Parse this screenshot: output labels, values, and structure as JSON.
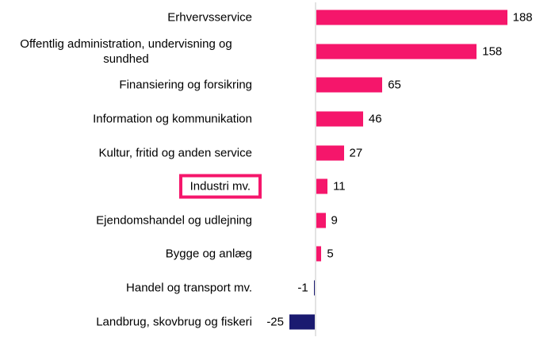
{
  "chart_data": {
    "type": "bar",
    "orientation": "horizontal",
    "title": "",
    "xlabel": "",
    "ylabel": "",
    "categories": [
      "Erhvervsservice",
      "Offentlig administration, undervisning og sundhed",
      "Finansiering og forsikring",
      "Information og kommunikation",
      "Kultur, fritid og anden service",
      "Industri mv.",
      "Ejendomshandel og udlejning",
      "Bygge og anlæg",
      "Handel og transport mv.",
      "Landbrug, skovbrug og fiskeri"
    ],
    "values": [
      188,
      158,
      65,
      46,
      27,
      11,
      9,
      5,
      -1,
      -25
    ],
    "value_labels": [
      "188",
      "158",
      "65",
      "46",
      "27",
      "11",
      "9",
      "5",
      "-1",
      "-25"
    ],
    "highlighted_category": "Industri mv.",
    "legend": null,
    "grid": false,
    "axis": {
      "baseline_at": 0,
      "approx_value_range": [
        -25,
        188
      ]
    },
    "colors": {
      "positive_bar": "#F5166B",
      "negative_bar": "#1A1A70",
      "highlight_border": "#F5166B",
      "axis_line": "#E3E3E3",
      "text": "#000000"
    }
  }
}
